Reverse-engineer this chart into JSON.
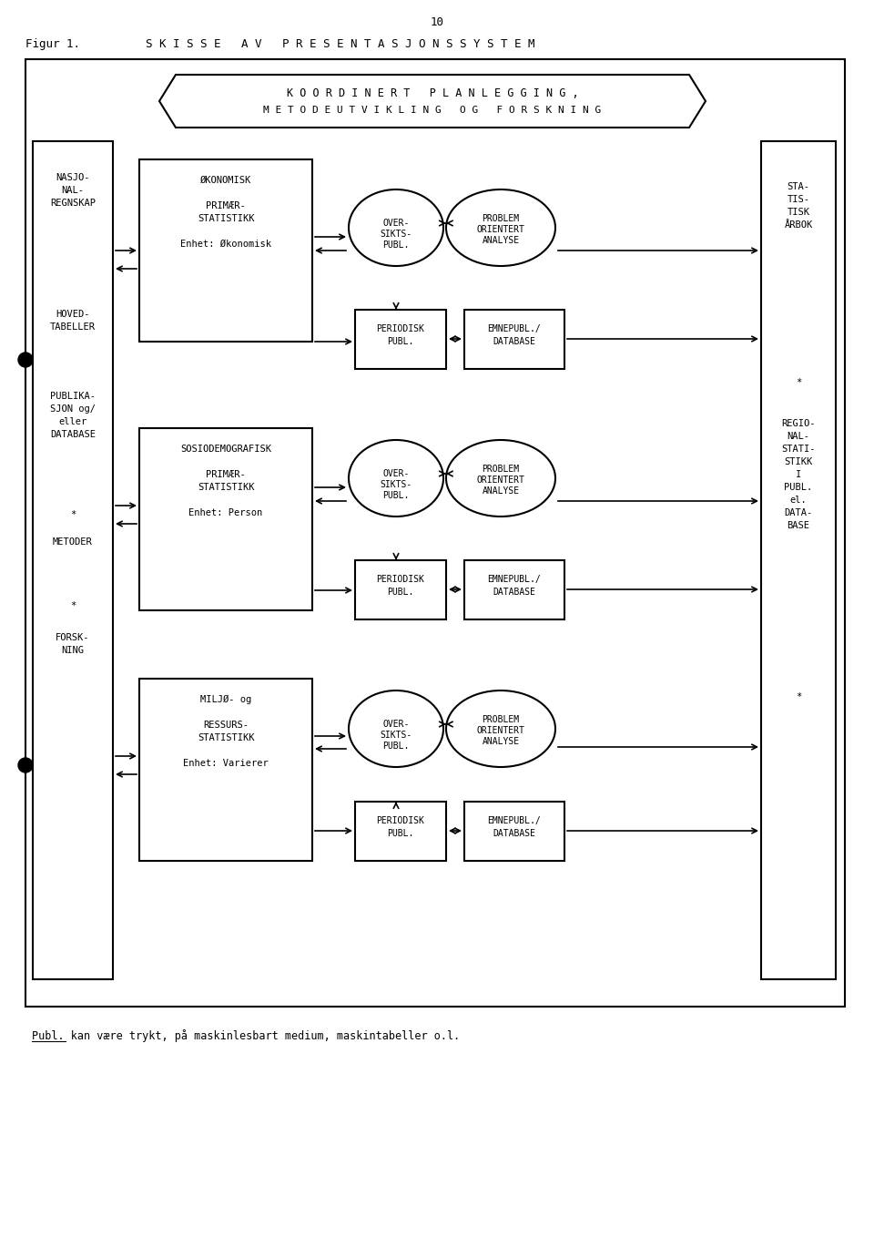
{
  "page_num": "10",
  "fig_label": "Figur 1.",
  "title": "S K I S S E   A V   P R E S E N T A S J O N S S Y S T E M",
  "top_box_line1": "K O O R D I N E R T   P L A N L E G G I N G ,",
  "top_box_line2": "M E T O D E U T V I K L I N G   O G   F O R S K N I N G",
  "left_col_texts": [
    [
      "NASJO-",
      "NAL-",
      "REGNSKAP"
    ],
    [
      "HOVED-",
      "TABELLER"
    ],
    [
      "PUBLIKA-",
      "SJON og/",
      "eller",
      "DATABASE"
    ],
    [
      "*"
    ],
    [
      "METODER"
    ],
    [
      "*"
    ],
    [
      "FORSK-",
      "NING"
    ]
  ],
  "right_col_texts": [
    [
      "STA-",
      "TIS-",
      "TISK",
      "ÅRBOK"
    ],
    [
      "*"
    ],
    [
      "REGIO-",
      "NAL-",
      "STATI-",
      "STIKK",
      "I",
      "PUBL.",
      "el.",
      "DATA-",
      "BASE"
    ],
    [
      "*"
    ]
  ],
  "primary_boxes": [
    {
      "lines": [
        "ØKONOMISK",
        "",
        "PRIMÆR-",
        "STATISTIKK",
        "",
        "Enhet: Økonomisk"
      ],
      "row": 0
    },
    {
      "lines": [
        "SOSIODEMOGRAFISK",
        "",
        "PRIMÆR-",
        "STATISTIKK",
        "",
        "Enhet: Person"
      ],
      "row": 1
    },
    {
      "lines": [
        "MILJØ- og",
        "",
        "RESSURS-",
        "STATISTIKK",
        "",
        "Enhet: Varierer"
      ],
      "row": 2
    }
  ],
  "circle_pairs": [
    {
      "top": [
        "OVER-",
        "SIKTS-",
        "PUBL."
      ],
      "bottom": [
        "PROBLEM",
        "ORIENTERT",
        "ANALYSE"
      ],
      "row": 0
    },
    {
      "top": [
        "OVER-",
        "SIKTS-",
        "PUBL."
      ],
      "bottom": [
        "PROBLEM",
        "ORIENTERT",
        "ANALYSE"
      ],
      "row": 1
    },
    {
      "top": [
        "OVER-",
        "SIKTS-",
        "PUBL."
      ],
      "bottom": [
        "PROBLEM",
        "ORIENTERT",
        "ANALYSE"
      ],
      "row": 2
    }
  ],
  "rect_pairs": [
    {
      "left": [
        "PERIODISK",
        "PUBL."
      ],
      "right": [
        "EMNEPUBL./",
        "DATABASE"
      ],
      "row": 0
    },
    {
      "left": [
        "PERIODISK",
        "PUBL."
      ],
      "right": [
        "EMNEPUBL./",
        "DATABASE"
      ],
      "row": 1
    },
    {
      "left": [
        "PERIODISK",
        "PUBL."
      ],
      "right": [
        "EMNEPUBL./",
        "DATABASE"
      ],
      "row": 2
    }
  ],
  "footnote": "Publ. kan være trykt, på maskinlesbart medium, maskintabeller o.l.",
  "bg_color": "#ffffff",
  "text_color": "#000000"
}
